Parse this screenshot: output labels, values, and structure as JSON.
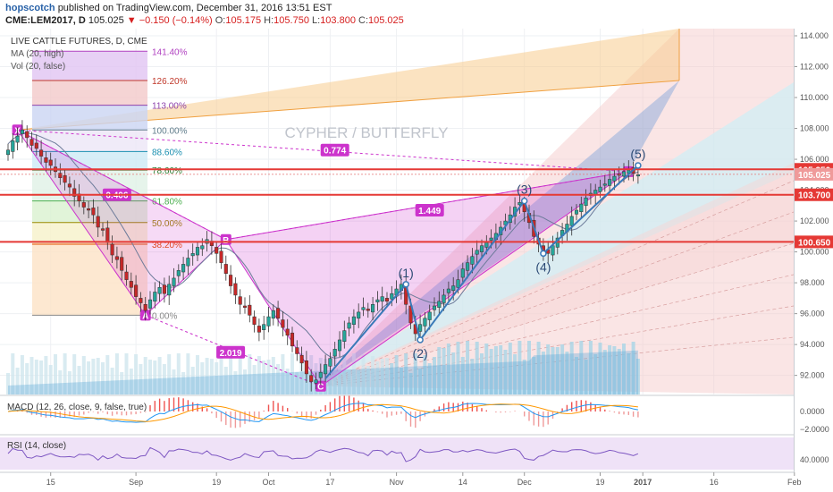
{
  "header": {
    "author": "hopscotch",
    "published": "published on TradingView.com, December 31, 2016 13:51 EST",
    "symbol": "CME:LEM2017, D",
    "last": "105.025",
    "arrow": "▼",
    "change": "−0.150 (−0.14%)",
    "o_label": "O:",
    "o_value": "105.175",
    "h_label": "H:",
    "h_value": "105.750",
    "l_label": "L:",
    "l_value": "103.800",
    "c_label": "C:",
    "c_value": "105.025"
  },
  "legend": {
    "title": "LIVE CATTLE FUTURES, D, CME",
    "ma": "MA (20, high)",
    "vol": "Vol (20, false)"
  },
  "pattern_title": "CYPHER / BUTTERFLY",
  "fib_levels": [
    {
      "label": "141.40%",
      "price": 113.0,
      "color": "#b040c0"
    },
    {
      "label": "126.20%",
      "price": 111.1,
      "color": "#c0392b"
    },
    {
      "label": "113.00%",
      "price": 109.5,
      "color": "#8e44ad"
    },
    {
      "label": "100.00%",
      "price": 107.9,
      "color": "#607d8b"
    },
    {
      "label": "88.60%",
      "price": 106.5,
      "color": "#1a8fb0"
    },
    {
      "label": "78.60%",
      "price": 105.3,
      "color": "#2e7d32"
    },
    {
      "label": "61.80%",
      "price": 103.3,
      "color": "#4caf50"
    },
    {
      "label": "50.00%",
      "price": 101.9,
      "color": "#9a8a00"
    },
    {
      "label": "38.20%",
      "price": 100.5,
      "color": "#e65100"
    },
    {
      "label": "0.00%",
      "price": 95.9,
      "color": "#888888"
    }
  ],
  "xabcd": {
    "points": [
      {
        "label": "X",
        "x": 2,
        "price": 107.9
      },
      {
        "label": "A",
        "x": 29,
        "price": 95.9
      },
      {
        "label": "B",
        "x": 46,
        "price": 100.8
      },
      {
        "label": "C",
        "x": 66,
        "price": 91.3
      },
      {
        "label": "D",
        "x": 131,
        "price": 105.2
      }
    ],
    "ratios": [
      {
        "label": "0.406",
        "x": 23,
        "price": 103.7
      },
      {
        "label": "0.774",
        "x": 69,
        "price": 106.6
      },
      {
        "label": "1.449",
        "x": 89,
        "price": 102.7
      },
      {
        "label": "2.019",
        "x": 47,
        "price": 93.5
      }
    ]
  },
  "waves": [
    {
      "label": "(1)",
      "x": 84,
      "price": 97.9
    },
    {
      "label": "(2)",
      "x": 87,
      "price": 94.3
    },
    {
      "label": "(3)",
      "x": 109,
      "price": 103.3
    },
    {
      "label": "(4)",
      "x": 113,
      "price": 99.9
    },
    {
      "label": "(5)",
      "x": 133,
      "price": 105.6
    }
  ],
  "h_lines": [
    {
      "price": 105.35,
      "label": "105.350"
    },
    {
      "price": 103.7,
      "label": "103.700"
    },
    {
      "price": 100.65,
      "label": "100.650"
    }
  ],
  "current_price": {
    "price": 105.025,
    "label": "105.025"
  },
  "price_axis": {
    "ticks": [
      "114.000",
      "112.000",
      "110.000",
      "108.000",
      "106.000",
      "104.000",
      "102.000",
      "100.000",
      "98.000",
      "96.000",
      "94.000",
      "92.000"
    ]
  },
  "time_axis": {
    "labels": [
      "15",
      "Sep",
      "19",
      "Oct",
      "17",
      "Nov",
      "14",
      "Dec",
      "19",
      "2017",
      "16",
      "Feb"
    ]
  },
  "macd": {
    "label": "MACD (12, 26, close, 9, false, true)",
    "ticks": [
      "0.0000",
      "−2.0000"
    ]
  },
  "rsi": {
    "label": "RSI (14, close)",
    "ticks": [
      "40.0000"
    ]
  },
  "chart_data": {
    "type": "candlestick",
    "title": "LIVE CATTLE FUTURES, D, CME",
    "symbol": "CME:LEM2017",
    "ylim": [
      90.8,
      114.6
    ],
    "x_ticks": [
      "15",
      "Sep",
      "19",
      "Oct",
      "17",
      "Nov",
      "14",
      "Dec",
      "19",
      "2017",
      "16",
      "Feb"
    ],
    "candles_close": [
      106.6,
      107.2,
      107.5,
      107.9,
      107.4,
      106.9,
      106.7,
      106.2,
      105.8,
      105.6,
      105.2,
      104.8,
      104.5,
      104.2,
      103.6,
      103.3,
      102.9,
      102.7,
      102.4,
      101.6,
      101.4,
      100.6,
      99.8,
      99.5,
      98.8,
      98.2,
      97.7,
      97.1,
      96.7,
      96.2,
      96.9,
      97.4,
      97.7,
      97.3,
      97.9,
      98.3,
      98.8,
      99.2,
      99.6,
      99.9,
      100.3,
      100.4,
      100.8,
      100.4,
      99.9,
      99.3,
      98.6,
      97.8,
      97.2,
      96.6,
      96.4,
      95.9,
      95.3,
      94.8,
      95.3,
      95.8,
      96.2,
      95.7,
      95.1,
      94.6,
      93.9,
      93.4,
      92.8,
      92.1,
      91.6,
      91.7,
      92.2,
      92.7,
      93.1,
      93.7,
      94.3,
      94.9,
      95.4,
      95.8,
      96.1,
      96.4,
      96.2,
      96.6,
      96.9,
      97.1,
      96.8,
      97.3,
      97.6,
      97.9,
      96.6,
      95.4,
      94.7,
      95.3,
      95.7,
      96.1,
      96.5,
      96.8,
      97.2,
      97.6,
      97.8,
      98.2,
      98.9,
      99.3,
      99.7,
      100.1,
      100.4,
      100.6,
      100.9,
      101.2,
      101.6,
      102.0,
      102.4,
      102.9,
      103.2,
      102.6,
      101.9,
      101.0,
      100.5,
      100.0,
      99.9,
      100.4,
      100.9,
      101.4,
      101.8,
      102.3,
      102.7,
      103.1,
      103.5,
      103.8,
      104.0,
      104.2,
      104.4,
      104.7,
      104.9,
      105.0,
      105.2,
      105.3,
      105.1,
      105.0
    ],
    "series": [
      {
        "name": "MA (20, high)",
        "type": "line"
      },
      {
        "name": "Vol (20, false)",
        "type": "bar"
      }
    ],
    "annotations": [
      "CYPHER / BUTTERFLY",
      "X",
      "A",
      "B",
      "C",
      "D",
      "0.406",
      "0.774",
      "1.449",
      "2.019",
      "(1)",
      "(2)",
      "(3)",
      "(4)",
      "(5)"
    ]
  },
  "colors": {
    "up": "#26a69a",
    "down": "#c62828",
    "hline": "#e53935",
    "pattern": "#cc33cc",
    "wave": "#3a7ab8",
    "ma": "#6d7b9a",
    "macd_line": "#2196f3",
    "signal_line": "#ff9800",
    "rsi_line": "#7e57c2"
  }
}
